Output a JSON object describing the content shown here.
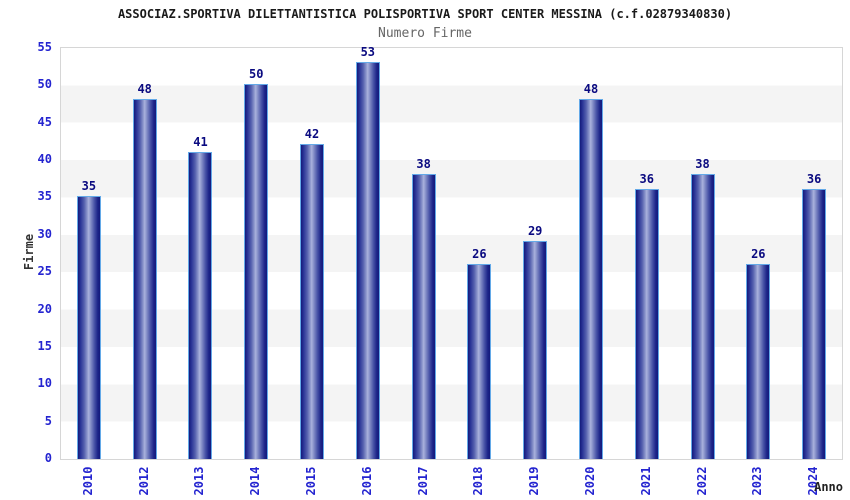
{
  "header": {
    "title": "ASSOCIAZ.SPORTIVA DILETTANTISTICA POLISPORTIVA SPORT CENTER MESSINA (c.f.02879340830)",
    "subtitle": "Numero Firme"
  },
  "chart_data": {
    "type": "bar",
    "title": "ASSOCIAZ.SPORTIVA DILETTANTISTICA POLISPORTIVA SPORT CENTER MESSINA (c.f.02879340830)",
    "subtitle": "Numero Firme",
    "categories": [
      "2010",
      "2012",
      "2013",
      "2014",
      "2015",
      "2016",
      "2017",
      "2018",
      "2019",
      "2020",
      "2021",
      "2022",
      "2023",
      "2024"
    ],
    "values": [
      35,
      48,
      41,
      50,
      42,
      53,
      38,
      26,
      29,
      48,
      36,
      38,
      26,
      36
    ],
    "xlabel": "Anno",
    "ylabel": "Firme",
    "ylim": [
      0,
      55
    ],
    "yticks": [
      0,
      5,
      10,
      15,
      20,
      25,
      30,
      35,
      40,
      45,
      50,
      55
    ],
    "grid": "horizontal-bands-every-5",
    "legend": false,
    "value_labels_shown": true,
    "colors": {
      "bar_edge": "#141a7c",
      "bar_center": "#aab2dd",
      "bar_border": "#63a9e8",
      "tick_label": "#2424d0",
      "value_label": "#0a0a80",
      "band": "#f4f4f4",
      "plot_border": "#d6d6d6",
      "title": "#1a1a1a",
      "subtitle": "#666666",
      "axis_title": "#333333"
    }
  }
}
